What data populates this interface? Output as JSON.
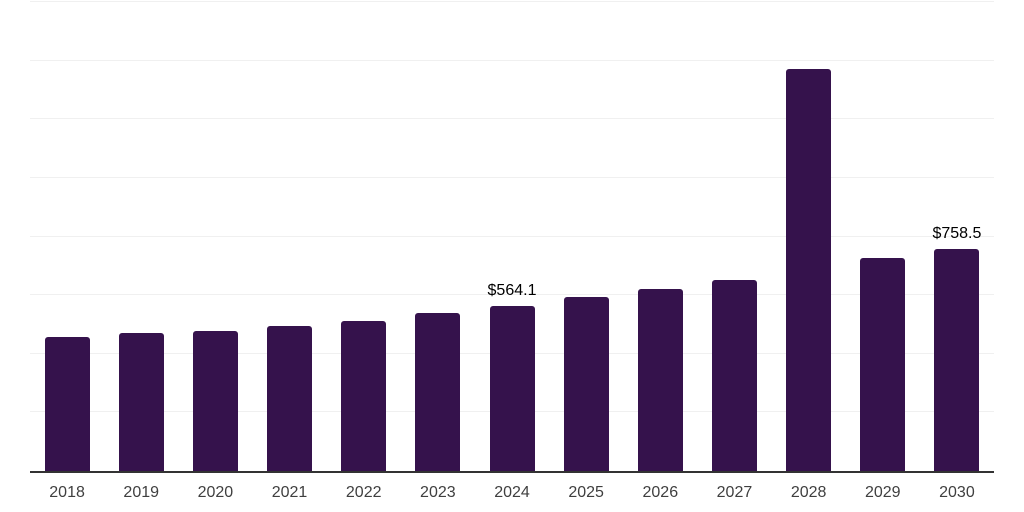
{
  "chart_data": {
    "type": "bar",
    "title": "",
    "xlabel": "",
    "ylabel": "",
    "categories": [
      "2018",
      "2019",
      "2020",
      "2021",
      "2022",
      "2023",
      "2024",
      "2025",
      "2026",
      "2027",
      "2028",
      "2029",
      "2030"
    ],
    "values": [
      457,
      470,
      477,
      494,
      513,
      538,
      564.1,
      592,
      621,
      651,
      1371,
      726,
      758.5
    ],
    "data_labels": [
      null,
      null,
      null,
      null,
      null,
      null,
      "$564.1",
      null,
      null,
      null,
      null,
      null,
      "$758.5"
    ],
    "ylim": [
      0,
      1600
    ],
    "gridline_step": 200,
    "grid": true,
    "legend_position": "none",
    "colors": {
      "bar": "#35124C",
      "axis_line": "#333333",
      "gridline": "#f0f0f0",
      "data_label": "#000000",
      "tick_label": "#3f3f3f",
      "background": "#ffffff"
    }
  }
}
